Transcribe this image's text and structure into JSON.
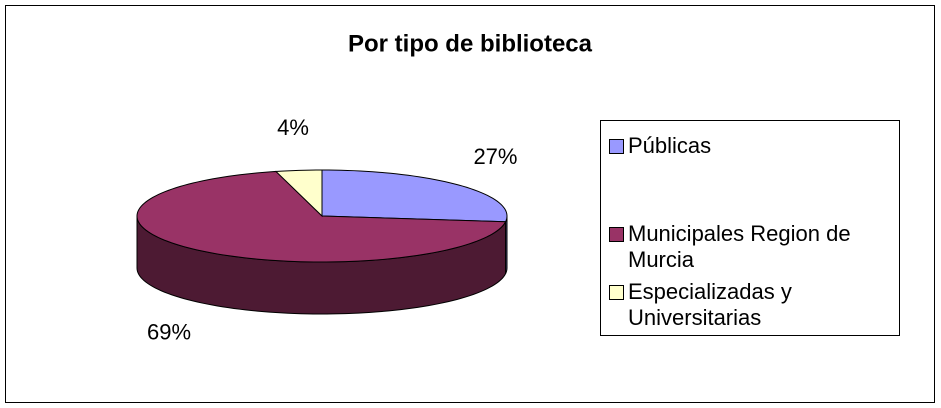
{
  "chart_data": {
    "type": "pie",
    "title": "Por tipo de biblioteca",
    "categories": [
      "Públicas",
      "Municipales Region de Murcia",
      "Especializadas y Universitarias"
    ],
    "values": [
      27,
      69,
      4
    ],
    "value_labels": [
      "27%",
      "69%",
      "4%"
    ],
    "colors": [
      "#9999ff",
      "#993366",
      "#ffffcc"
    ]
  }
}
